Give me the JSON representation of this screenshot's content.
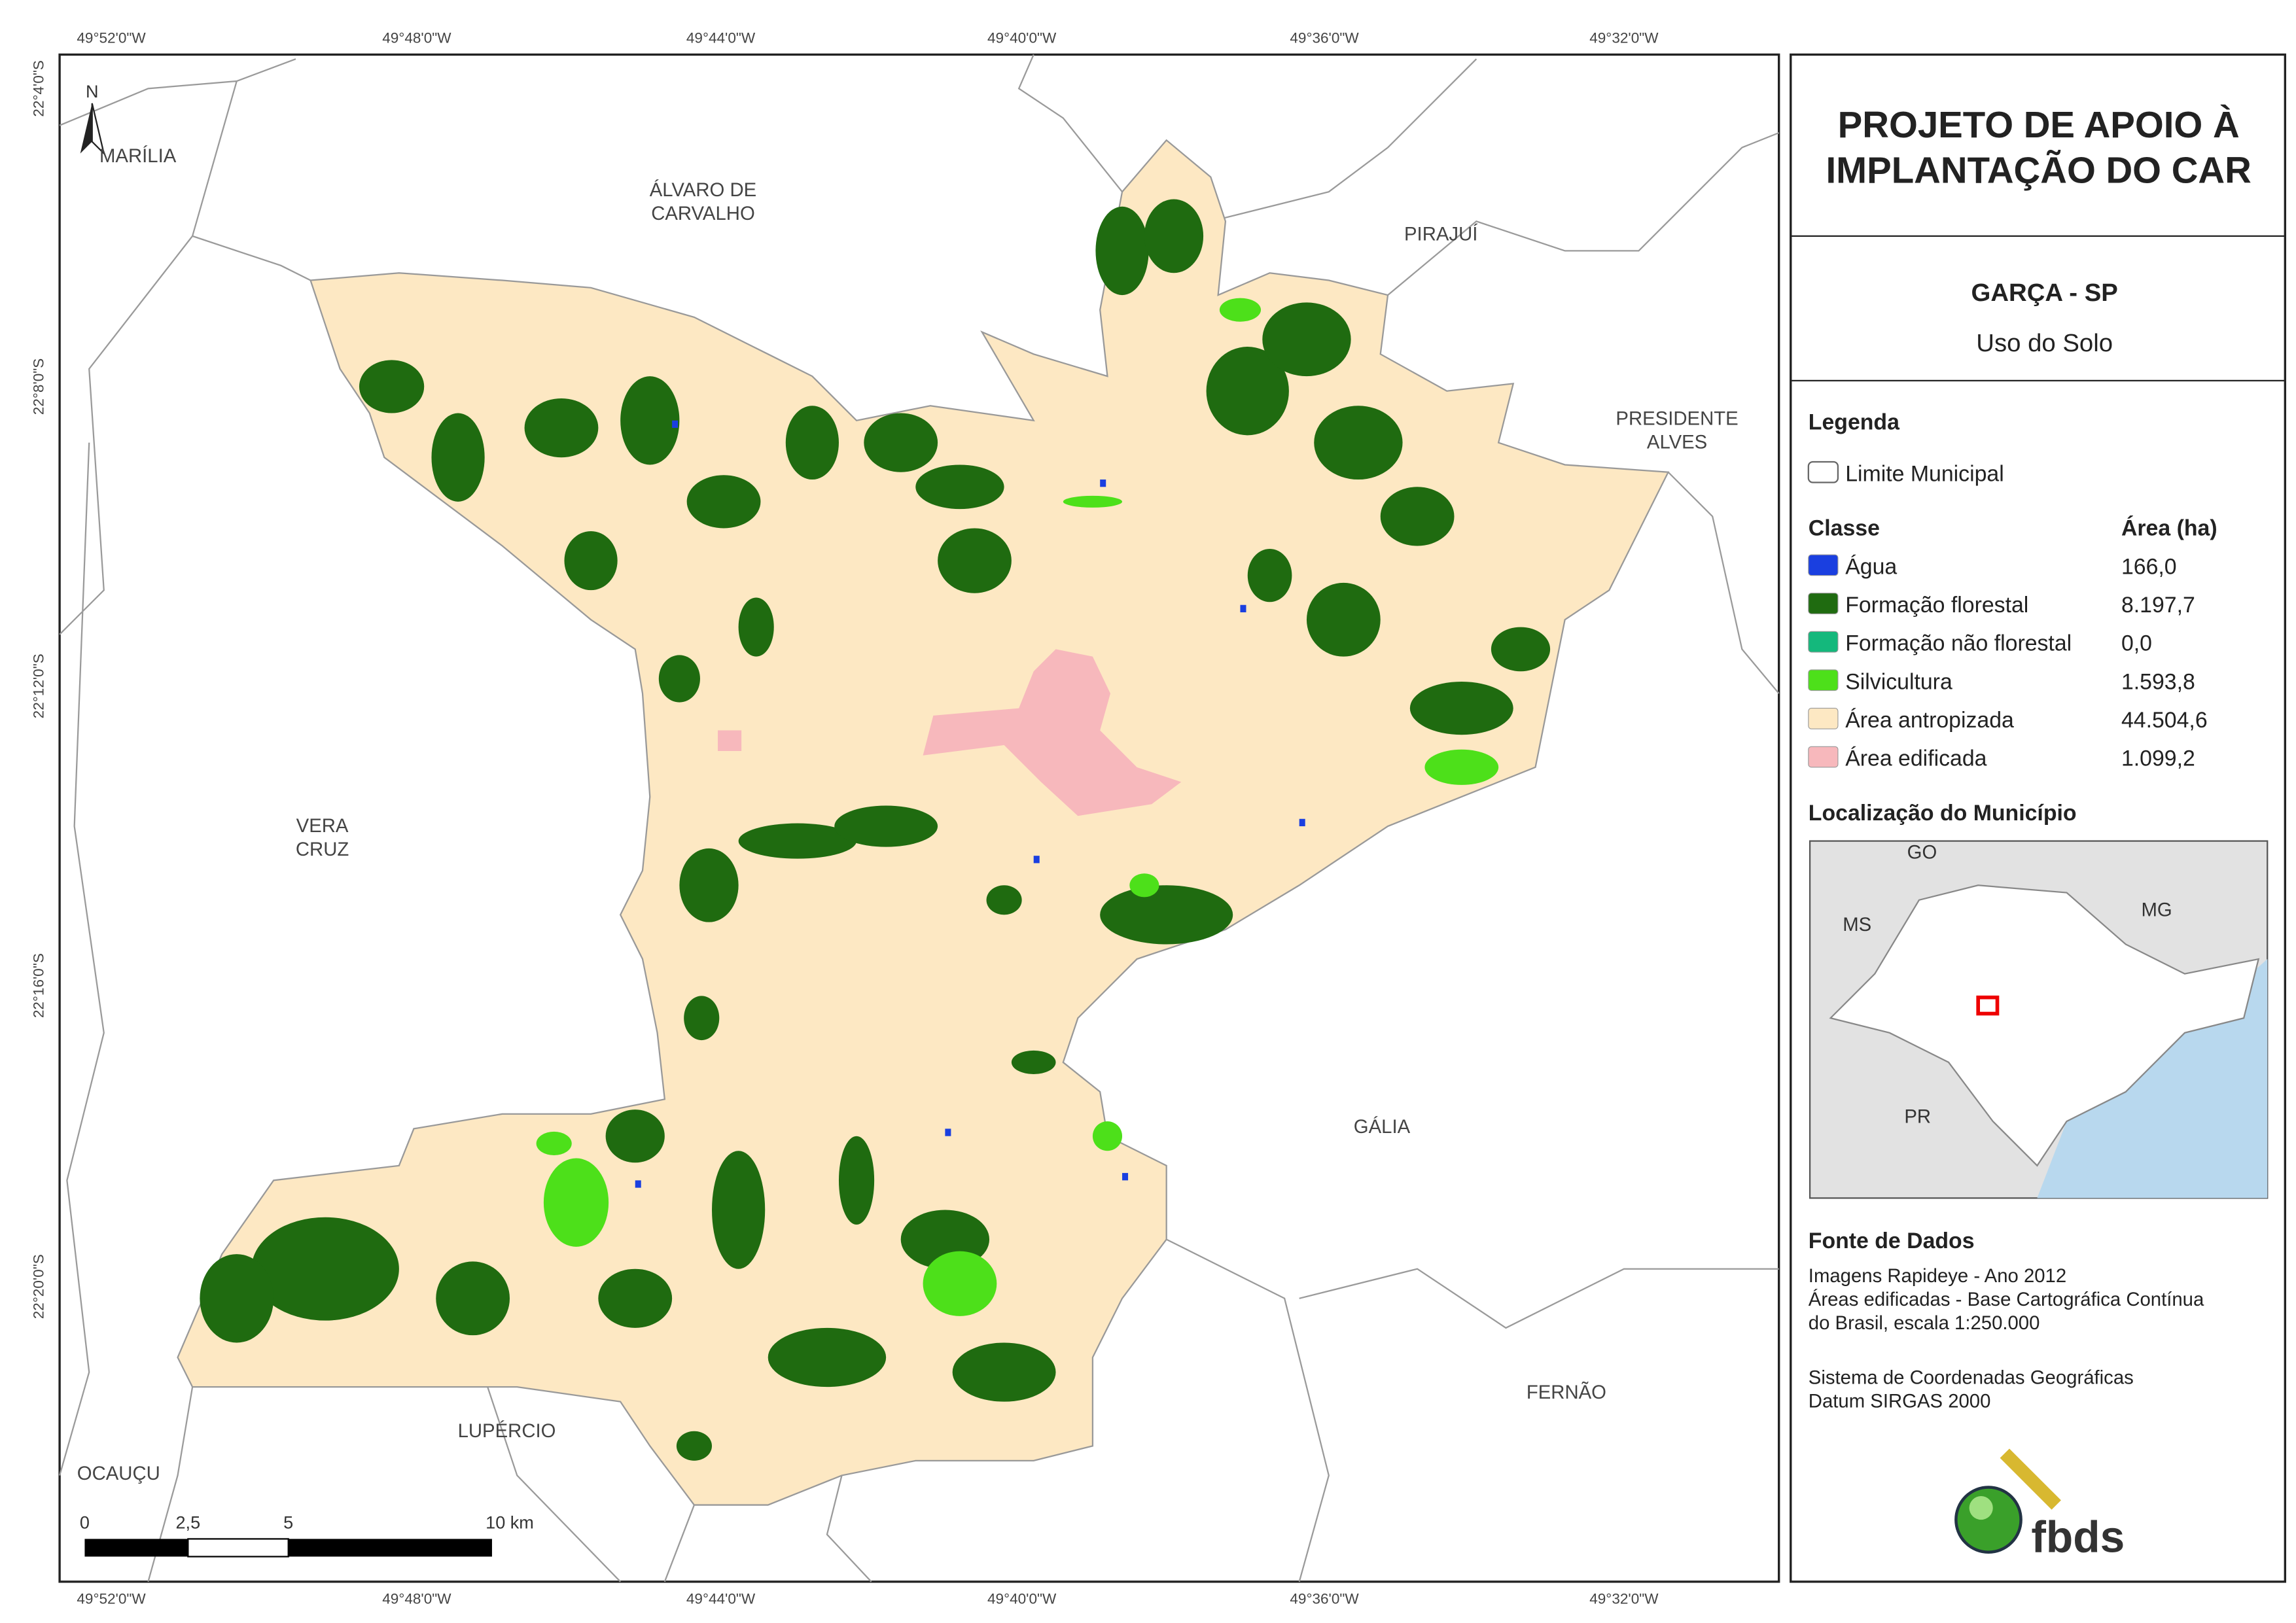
{
  "map": {
    "top_ticks": [
      "49°52'0\"W",
      "49°48'0\"W",
      "49°44'0\"W",
      "49°40'0\"W",
      "49°36'0\"W",
      "49°32'0\"W"
    ],
    "bottom_ticks": [
      "49°52'0\"W",
      "49°48'0\"W",
      "49°44'0\"W",
      "49°40'0\"W",
      "49°36'0\"W",
      "49°32'0\"W"
    ],
    "left_ticks": [
      "22°4'0\"S",
      "22°8'0\"S",
      "22°12'0\"S",
      "22°16'0\"S",
      "22°20'0\"S"
    ],
    "north": "N",
    "places": [
      {
        "lines": [
          "MARÍLIA"
        ]
      },
      {
        "lines": [
          "ÁLVARO DE",
          "CARVALHO"
        ]
      },
      {
        "lines": [
          "PIRAJUÍ"
        ]
      },
      {
        "lines": [
          "PRESIDENTE",
          "ALVES"
        ]
      },
      {
        "lines": [
          "VERA",
          "CRUZ"
        ]
      },
      {
        "lines": [
          "GÁLIA"
        ]
      },
      {
        "lines": [
          "FERNÃO"
        ]
      },
      {
        "lines": [
          "LUPÉRCIO"
        ]
      },
      {
        "lines": [
          "OCAUÇU"
        ]
      }
    ],
    "scale_bar": [
      "0",
      "2,5",
      "5",
      "10 km"
    ]
  },
  "panel": {
    "title": [
      "PROJETO DE APOIO À",
      "IMPLANTAÇÃO DO CAR"
    ],
    "municipality": "GARÇA - SP",
    "subtitle": "Uso do Solo",
    "legend_title": "Legenda",
    "boundary_label": "Limite Municipal",
    "class_header": "Classe",
    "area_header": "Área (ha)",
    "classes": [
      {
        "name": "Água",
        "area": "166,0",
        "color": "#1a3fe0"
      },
      {
        "name": "Formação florestal",
        "area": "8.197,7",
        "color": "#1f6b10"
      },
      {
        "name": "Formação não florestal",
        "area": "0,0",
        "color": "#14b87c"
      },
      {
        "name": "Silvicultura",
        "area": "1.593,8",
        "color": "#4de01a"
      },
      {
        "name": "Área antropizada",
        "area": "44.504,6",
        "color": "#fde8c3"
      },
      {
        "name": "Área edificada",
        "area": "1.099,2",
        "color": "#f7b8bc"
      }
    ],
    "location_title": "Localização do Município",
    "location_labels": [
      "GO",
      "MS",
      "MG",
      "PR"
    ],
    "sources_title": "Fonte de Dados",
    "sources": [
      "Imagens Rapideye - Ano 2012",
      "Áreas edificadas - Base Cartográfica Contínua",
      "do Brasil, escala 1:250.000"
    ],
    "crs": [
      "Sistema de Coordenadas Geográficas",
      "Datum SIRGAS 2000"
    ],
    "logo": "fbds"
  }
}
